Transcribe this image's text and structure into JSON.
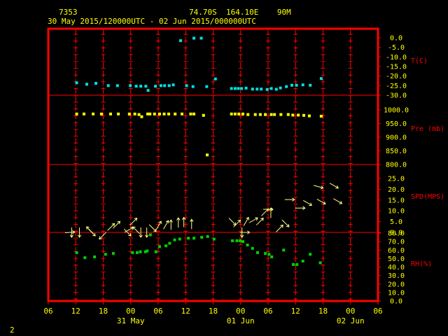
{
  "header": {
    "station_id": "7353",
    "location": "74.70S  164.10E    90M",
    "time_range": "30 May 2015/120000UTC - 02 Jun 2015/000000UTC"
  },
  "footer": {
    "page_number": "2"
  },
  "colors": {
    "background": "#000000",
    "frame": "#ff0000",
    "axis_text": "#ffff00",
    "temperature": "#00e0e0",
    "pressure": "#ffff00",
    "wind": "#ffff80",
    "rh": "#00d000"
  },
  "chart_data": {
    "type": "scatter",
    "x_axis": {
      "unit": "hours since 30 May 2015 06 UTC",
      "range": [
        0,
        72
      ],
      "tick_labels": [
        "06",
        "12",
        "18",
        "00",
        "06",
        "12",
        "18",
        "00",
        "06",
        "12",
        "18",
        "00",
        "06"
      ],
      "date_labels": [
        {
          "text": "31 May",
          "hour": 18
        },
        {
          "text": "01 Jun",
          "hour": 42
        },
        {
          "text": "02 Jun",
          "hour": 66
        }
      ]
    },
    "panels": [
      {
        "name": "temperature",
        "label": "T(C)",
        "range": [
          -30,
          0
        ],
        "ticks": [
          "0.0",
          "-5.0",
          "-10.0",
          "-15.0",
          "-20.0",
          "-25.0",
          "-30.0"
        ],
        "points": [
          [
            6.2,
            -23.5
          ],
          [
            8.4,
            -24.3
          ],
          [
            10.4,
            -23.8
          ],
          [
            13.1,
            -25.0
          ],
          [
            15.1,
            -25.0
          ],
          [
            17.9,
            -25.0
          ],
          [
            19.2,
            -25.3
          ],
          [
            20.2,
            -25.3
          ],
          [
            21.3,
            -25.3
          ],
          [
            21.8,
            -27.5
          ],
          [
            23.4,
            -25.3
          ],
          [
            24.6,
            -25.0
          ],
          [
            25.4,
            -25.0
          ],
          [
            26.4,
            -25.0
          ],
          [
            27.3,
            -24.6
          ],
          [
            28.9,
            -1.5
          ],
          [
            30.2,
            -25.0
          ],
          [
            31.6,
            -25.5
          ],
          [
            31.8,
            -0.2
          ],
          [
            33.4,
            -0.2
          ],
          [
            34.6,
            -25.5
          ],
          [
            36.5,
            -21.5
          ],
          [
            40.0,
            -26.5
          ],
          [
            40.8,
            -26.5
          ],
          [
            41.5,
            -26.5
          ],
          [
            42.2,
            -26.5
          ],
          [
            43.2,
            -26.3
          ],
          [
            44.6,
            -26.8
          ],
          [
            45.6,
            -26.8
          ],
          [
            46.5,
            -26.8
          ],
          [
            47.8,
            -27.0
          ],
          [
            48.7,
            -26.5
          ],
          [
            49.8,
            -26.9
          ],
          [
            50.7,
            -26.2
          ],
          [
            52.0,
            -25.5
          ],
          [
            53.2,
            -24.8
          ],
          [
            54.2,
            -24.8
          ],
          [
            55.6,
            -24.6
          ],
          [
            57.2,
            -24.8
          ],
          [
            59.6,
            -21.3
          ]
        ]
      },
      {
        "name": "pressure",
        "label": "Pre (mb)",
        "range": [
          800,
          1000
        ],
        "ticks": [
          "1000.0",
          "950.0",
          "900.0",
          "850.0",
          "800.0"
        ],
        "points": [
          [
            6.2,
            985
          ],
          [
            7.8,
            985
          ],
          [
            9.8,
            985
          ],
          [
            11.6,
            985
          ],
          [
            13.6,
            985
          ],
          [
            15.3,
            985
          ],
          [
            17.7,
            985
          ],
          [
            18.9,
            985
          ],
          [
            19.8,
            983
          ],
          [
            20.4,
            975
          ],
          [
            21.7,
            985
          ],
          [
            22.2,
            985
          ],
          [
            23.2,
            985
          ],
          [
            24.3,
            985
          ],
          [
            25.3,
            985
          ],
          [
            26.3,
            985
          ],
          [
            27.7,
            985
          ],
          [
            29.2,
            985
          ],
          [
            31.1,
            985
          ],
          [
            31.8,
            985
          ],
          [
            33.9,
            980
          ],
          [
            34.7,
            835
          ],
          [
            40.0,
            985
          ],
          [
            40.8,
            985
          ],
          [
            41.6,
            985
          ],
          [
            42.5,
            985
          ],
          [
            43.6,
            983
          ],
          [
            45.2,
            983
          ],
          [
            46.3,
            983
          ],
          [
            47.4,
            983
          ],
          [
            48.7,
            983
          ],
          [
            49.4,
            983
          ],
          [
            50.8,
            983
          ],
          [
            52.4,
            983
          ],
          [
            53.4,
            981
          ],
          [
            54.6,
            981
          ],
          [
            55.8,
            980
          ],
          [
            57.0,
            978
          ],
          [
            59.6,
            977
          ]
        ]
      },
      {
        "name": "wind",
        "label": "SPD(MPS)",
        "range": [
          0,
          25
        ],
        "ticks": [
          "25.0",
          "20.0",
          "15.0",
          "10.0",
          "5.0",
          "0.0"
        ],
        "arrows": [
          [
            4.7,
            0,
            4.5
          ],
          [
            5.1,
            0,
            -90
          ],
          [
            6.8,
            0,
            -90
          ],
          [
            9.1,
            1.0,
            135
          ],
          [
            9.5,
            0,
            -45
          ],
          [
            11.9,
            -1.5,
            -135
          ],
          [
            13.7,
            2.5,
            45
          ],
          [
            14.9,
            3.5,
            45
          ],
          [
            17.3,
            0,
            -45
          ],
          [
            17.6,
            1.2,
            30
          ],
          [
            18.6,
            5.0,
            45
          ],
          [
            19.2,
            1.0,
            135
          ],
          [
            20.2,
            0,
            -90
          ],
          [
            21.5,
            0,
            -90
          ],
          [
            22.8,
            2.0,
            -45
          ],
          [
            24.1,
            3.2,
            60
          ],
          [
            25.7,
            3.5,
            60
          ],
          [
            26.8,
            3.5,
            90
          ],
          [
            28.4,
            4.5,
            90
          ],
          [
            29.6,
            4.7,
            90
          ],
          [
            31.3,
            3.8,
            90
          ],
          [
            40.2,
            5.0,
            -45
          ],
          [
            41.2,
            4.1,
            45
          ],
          [
            42.3,
            0,
            -90
          ],
          [
            42.9,
            0,
            0
          ],
          [
            43.2,
            5.0,
            60
          ],
          [
            44.8,
            5.6,
            30
          ],
          [
            46.2,
            5.0,
            45
          ],
          [
            47.3,
            9.3,
            45
          ],
          [
            48.0,
            10.7,
            0
          ],
          [
            48.6,
            9.0,
            90
          ],
          [
            50.5,
            1.8,
            45
          ],
          [
            51.8,
            4.2,
            -45
          ],
          [
            52.7,
            15.2,
            0
          ],
          [
            55.0,
            11.3,
            0
          ],
          [
            56.6,
            13.7,
            -30
          ],
          [
            59.0,
            21.2,
            -15
          ],
          [
            59.6,
            14.3,
            -30
          ],
          [
            62.4,
            21.7,
            -30
          ],
          [
            63.2,
            14.5,
            -30
          ]
        ]
      },
      {
        "name": "rh",
        "label": "RH(%)",
        "range": [
          0,
          80
        ],
        "ticks": [
          "80.0",
          "70.0",
          "60.0",
          "50.0",
          "40.0",
          "30.0",
          "20.0",
          "10.0",
          "0.0"
        ],
        "points": [
          [
            6.2,
            57
          ],
          [
            8.0,
            51
          ],
          [
            10.1,
            52
          ],
          [
            12.5,
            55
          ],
          [
            14.2,
            56
          ],
          [
            18.4,
            57
          ],
          [
            19.4,
            57
          ],
          [
            20.1,
            58
          ],
          [
            21.2,
            58
          ],
          [
            21.6,
            59
          ],
          [
            22.3,
            78
          ],
          [
            23.5,
            58
          ],
          [
            24.3,
            64
          ],
          [
            25.7,
            65
          ],
          [
            26.5,
            68
          ],
          [
            27.6,
            72
          ],
          [
            28.7,
            73
          ],
          [
            30.6,
            74
          ],
          [
            31.8,
            74
          ],
          [
            33.5,
            75
          ],
          [
            34.8,
            76
          ],
          [
            36.2,
            73
          ],
          [
            40.2,
            71
          ],
          [
            41.2,
            71
          ],
          [
            41.9,
            71
          ],
          [
            42.5,
            70
          ],
          [
            43.5,
            66
          ],
          [
            44.6,
            62
          ],
          [
            45.7,
            57
          ],
          [
            47.4,
            56
          ],
          [
            48.2,
            55
          ],
          [
            48.8,
            52
          ],
          [
            51.4,
            60
          ],
          [
            53.5,
            43
          ],
          [
            54.3,
            43
          ],
          [
            55.6,
            47
          ],
          [
            57.2,
            55
          ],
          [
            59.4,
            45
          ]
        ]
      }
    ]
  }
}
